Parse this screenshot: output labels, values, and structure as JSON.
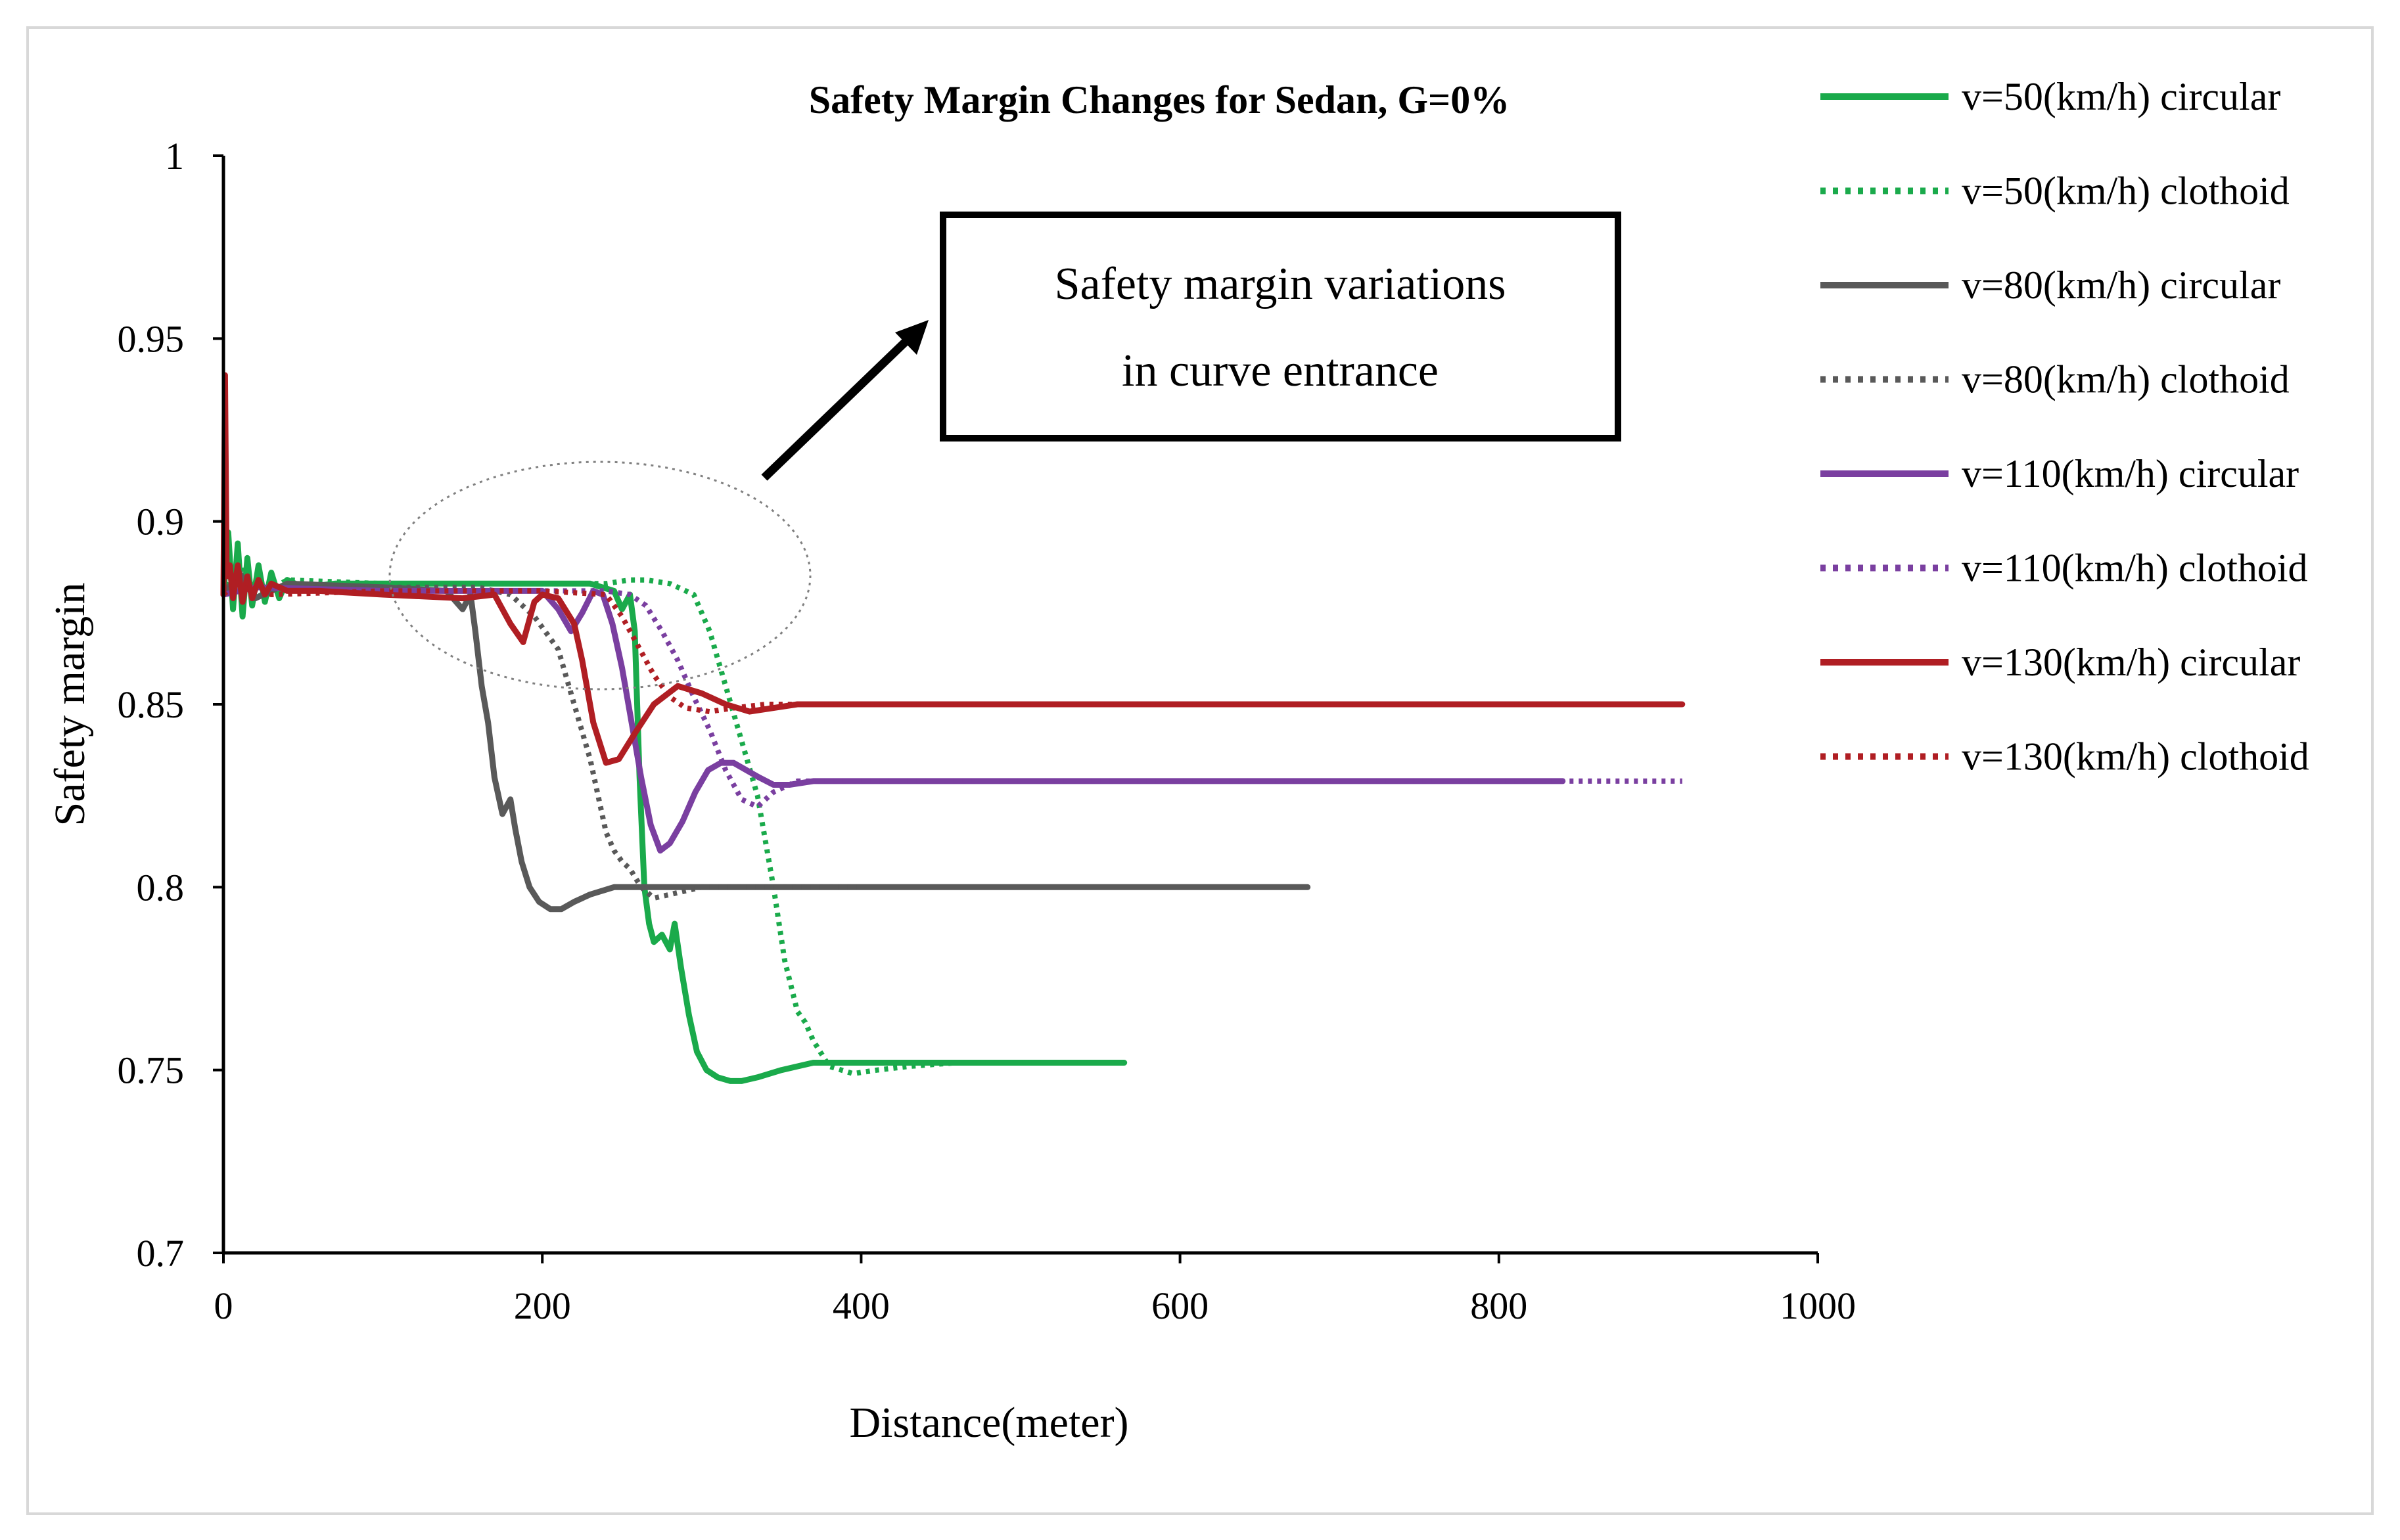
{
  "chart_data": {
    "type": "line",
    "title": "Safety Margin Changes for Sedan, G=0%",
    "xlabel": "Distance(meter)",
    "ylabel": "Safety margin",
    "xlim": [
      0,
      1000
    ],
    "ylim": [
      0.7,
      1.0
    ],
    "xticks": [
      0,
      200,
      400,
      600,
      800,
      1000
    ],
    "yticks": [
      0.7,
      0.75,
      0.8,
      0.85,
      0.9,
      0.95,
      1
    ],
    "ytick_labels": [
      "0.7",
      "0.75",
      "0.8",
      "0.85",
      "0.9",
      "0.95",
      "1"
    ],
    "grid": false,
    "legend_position": "right",
    "annotation": {
      "lines": [
        "Safety margin variations",
        "in curve entrance"
      ],
      "target": {
        "x": 235,
        "y": 0.885
      }
    },
    "series": [
      {
        "name": "v=50(km/h) circular",
        "color": "#1aaa4b",
        "style": "solid",
        "x": [
          0,
          3,
          6,
          9,
          12,
          15,
          18,
          22,
          26,
          30,
          35,
          40,
          50,
          70,
          100,
          150,
          200,
          230,
          245,
          250,
          255,
          258,
          261,
          264,
          267,
          270,
          275,
          280,
          283,
          287,
          292,
          297,
          303,
          310,
          318,
          325,
          335,
          350,
          370,
          400,
          450,
          500,
          540,
          565
        ],
        "y": [
          0.88,
          0.897,
          0.876,
          0.894,
          0.874,
          0.89,
          0.877,
          0.888,
          0.878,
          0.886,
          0.879,
          0.884,
          0.882,
          0.883,
          0.883,
          0.883,
          0.883,
          0.883,
          0.881,
          0.876,
          0.88,
          0.87,
          0.83,
          0.8,
          0.79,
          0.785,
          0.787,
          0.783,
          0.79,
          0.778,
          0.765,
          0.755,
          0.75,
          0.748,
          0.747,
          0.747,
          0.748,
          0.75,
          0.752,
          0.752,
          0.752,
          0.752,
          0.752,
          0.752
        ]
      },
      {
        "name": "v=50(km/h) clothoid",
        "color": "#1aaa4b",
        "style": "dotted",
        "x": [
          0,
          10,
          20,
          40,
          100,
          150,
          200,
          240,
          255,
          265,
          280,
          295,
          305,
          315,
          325,
          335,
          345,
          352,
          360,
          365,
          370,
          380,
          395,
          410,
          430,
          460,
          500,
          540,
          560
        ],
        "y": [
          0.88,
          0.888,
          0.879,
          0.884,
          0.883,
          0.883,
          0.883,
          0.883,
          0.884,
          0.884,
          0.883,
          0.88,
          0.87,
          0.855,
          0.84,
          0.825,
          0.8,
          0.78,
          0.766,
          0.763,
          0.758,
          0.751,
          0.749,
          0.75,
          0.751,
          0.752,
          0.752,
          0.752,
          0.752
        ]
      },
      {
        "name": "v=80(km/h) circular",
        "color": "#595959",
        "style": "solid",
        "x": [
          0,
          10,
          20,
          40,
          100,
          140,
          150,
          155,
          158,
          162,
          166,
          170,
          175,
          180,
          183,
          187,
          192,
          198,
          205,
          212,
          220,
          230,
          245,
          260,
          280,
          320,
          400,
          500,
          600,
          680
        ],
        "y": [
          0.88,
          0.886,
          0.879,
          0.883,
          0.882,
          0.881,
          0.876,
          0.88,
          0.87,
          0.855,
          0.845,
          0.83,
          0.82,
          0.824,
          0.816,
          0.807,
          0.8,
          0.796,
          0.794,
          0.794,
          0.796,
          0.798,
          0.8,
          0.8,
          0.8,
          0.8,
          0.8,
          0.8,
          0.8,
          0.8
        ]
      },
      {
        "name": "v=80(km/h) clothoid",
        "color": "#595959",
        "style": "dotted",
        "x": [
          0,
          20,
          100,
          160,
          180,
          195,
          210,
          220,
          230,
          240,
          245,
          250,
          255,
          262,
          270,
          280,
          300,
          340,
          400
        ],
        "y": [
          0.88,
          0.882,
          0.882,
          0.882,
          0.88,
          0.874,
          0.865,
          0.85,
          0.835,
          0.815,
          0.81,
          0.807,
          0.805,
          0.8,
          0.797,
          0.798,
          0.8,
          0.8,
          0.8
        ]
      },
      {
        "name": "v=110(km/h) circular",
        "color": "#7a3fa0",
        "style": "solid",
        "x": [
          0,
          20,
          100,
          180,
          200,
          210,
          218,
          225,
          232,
          238,
          244,
          250,
          256,
          262,
          268,
          274,
          280,
          288,
          296,
          304,
          312,
          320,
          328,
          336,
          345,
          355,
          370,
          400,
          500,
          600,
          700,
          800,
          840
        ],
        "y": [
          0.88,
          0.882,
          0.881,
          0.881,
          0.881,
          0.876,
          0.87,
          0.875,
          0.881,
          0.88,
          0.872,
          0.86,
          0.845,
          0.83,
          0.817,
          0.81,
          0.812,
          0.818,
          0.826,
          0.832,
          0.834,
          0.834,
          0.832,
          0.83,
          0.828,
          0.828,
          0.829,
          0.829,
          0.829,
          0.829,
          0.829,
          0.829,
          0.829
        ]
      },
      {
        "name": "v=110(km/h) clothoid",
        "color": "#7a3fa0",
        "style": "dotted",
        "x": [
          0,
          20,
          100,
          200,
          240,
          255,
          265,
          275,
          285,
          295,
          305,
          315,
          325,
          335,
          345,
          360,
          380,
          400,
          450,
          500,
          600,
          700,
          800,
          860,
          915
        ],
        "y": [
          0.88,
          0.882,
          0.881,
          0.881,
          0.881,
          0.88,
          0.877,
          0.87,
          0.862,
          0.852,
          0.843,
          0.832,
          0.824,
          0.822,
          0.826,
          0.829,
          0.829,
          0.829,
          0.829,
          0.829,
          0.829,
          0.829,
          0.829,
          0.829,
          0.829
        ]
      },
      {
        "name": "v=130(km/h) circular",
        "color": "#b01e23",
        "style": "solid",
        "x": [
          0,
          1,
          2,
          4,
          6,
          9,
          12,
          15,
          18,
          22,
          26,
          30,
          40,
          60,
          100,
          150,
          170,
          180,
          188,
          195,
          200,
          210,
          220,
          225,
          232,
          240,
          248,
          258,
          270,
          285,
          300,
          315,
          330,
          345,
          360,
          380,
          400,
          500,
          600,
          700,
          800,
          915
        ],
        "y": [
          0.88,
          0.94,
          0.885,
          0.888,
          0.879,
          0.888,
          0.878,
          0.885,
          0.879,
          0.884,
          0.88,
          0.883,
          0.881,
          0.881,
          0.88,
          0.879,
          0.88,
          0.872,
          0.867,
          0.878,
          0.88,
          0.879,
          0.872,
          0.862,
          0.845,
          0.834,
          0.835,
          0.842,
          0.85,
          0.855,
          0.853,
          0.85,
          0.848,
          0.849,
          0.85,
          0.85,
          0.85,
          0.85,
          0.85,
          0.85,
          0.85,
          0.85
        ]
      },
      {
        "name": "v=130(km/h) clothoid",
        "color": "#b01e23",
        "style": "dotted",
        "x": [
          0,
          10,
          30,
          100,
          200,
          240,
          250,
          260,
          270,
          280,
          290,
          305,
          320,
          340,
          380,
          450,
          600,
          800,
          915
        ],
        "y": [
          0.88,
          0.884,
          0.88,
          0.881,
          0.881,
          0.88,
          0.874,
          0.866,
          0.858,
          0.852,
          0.849,
          0.848,
          0.849,
          0.85,
          0.85,
          0.85,
          0.85,
          0.85,
          0.85
        ]
      }
    ]
  }
}
